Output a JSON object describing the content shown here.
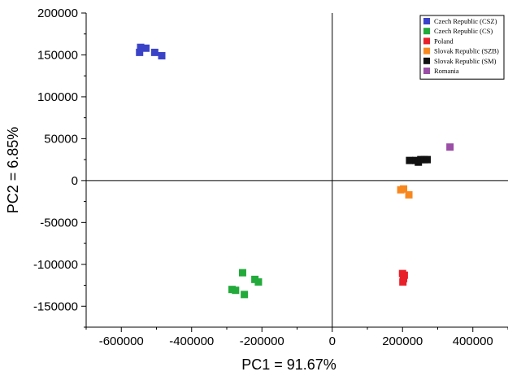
{
  "chart_data": {
    "type": "scatter",
    "xlabel": "PC1 = 91.67%",
    "ylabel": "PC2 = 6.85%",
    "xlim": [
      -700000,
      500000
    ],
    "ylim": [
      -175000,
      200000
    ],
    "xticks": [
      -600000,
      -400000,
      -200000,
      0,
      200000,
      400000
    ],
    "xtick_labels": [
      "-600000",
      "-400000",
      "-200000",
      "0",
      "200000",
      "400000"
    ],
    "yticks": [
      -150000,
      -100000,
      -50000,
      0,
      50000,
      100000,
      150000,
      200000
    ],
    "ytick_labels": [
      "-150000",
      "-100000",
      "-50000",
      "0",
      "50000",
      "100000",
      "150000",
      "200000"
    ],
    "reference_lines": {
      "x": 0,
      "y": 0
    },
    "grid": false,
    "legend_position": "top-right",
    "marker": "square",
    "series": [
      {
        "name": "Czech Republic (CSZ)",
        "color": "#3a43c8",
        "points": [
          [
            -548000,
            153000
          ],
          [
            -545000,
            159000
          ],
          [
            -530000,
            158000
          ],
          [
            -505000,
            153000
          ],
          [
            -485000,
            149000
          ]
        ]
      },
      {
        "name": "Czech Republic (CS)",
        "color": "#22aa3a",
        "points": [
          [
            -285000,
            -130000
          ],
          [
            -275000,
            -131000
          ],
          [
            -255000,
            -110000
          ],
          [
            -250000,
            -136000
          ],
          [
            -220000,
            -118000
          ],
          [
            -210000,
            -121000
          ]
        ]
      },
      {
        "name": "Poland",
        "color": "#e8202a",
        "points": [
          [
            200000,
            -111000
          ],
          [
            203000,
            -117000
          ],
          [
            201000,
            -121000
          ],
          [
            205000,
            -113000
          ]
        ]
      },
      {
        "name": "Slovak Republic (SZB)",
        "color": "#f7881f",
        "points": [
          [
            195000,
            -11000
          ],
          [
            203000,
            -10000
          ],
          [
            218000,
            -17000
          ]
        ]
      },
      {
        "name": "Slovak Republic (SM)",
        "color": "#111111",
        "points": [
          [
            220000,
            24000
          ],
          [
            238000,
            24000
          ],
          [
            245000,
            22000
          ],
          [
            252000,
            25000
          ],
          [
            262000,
            25000
          ],
          [
            270000,
            25000
          ]
        ]
      },
      {
        "name": "Romania",
        "color": "#9b4fa6",
        "points": [
          [
            335000,
            40000
          ]
        ]
      }
    ]
  }
}
